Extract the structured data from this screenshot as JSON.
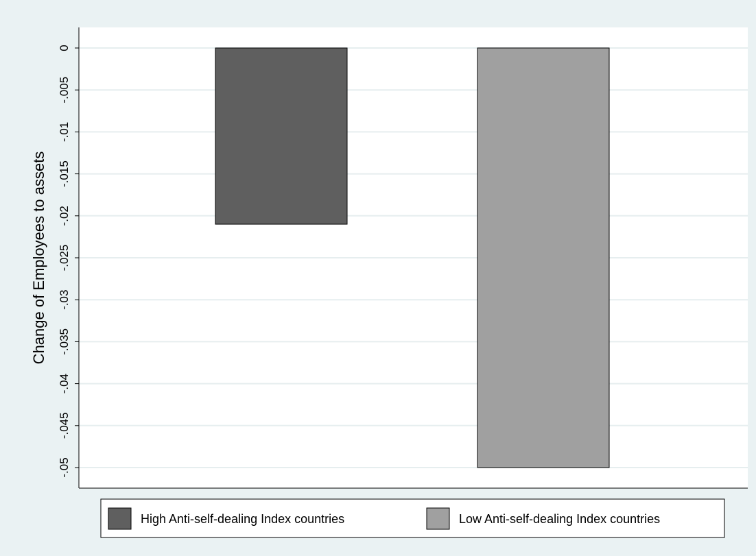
{
  "chart_data": {
    "type": "bar",
    "title": "",
    "xlabel": "",
    "ylabel": "Change of Employees to assets",
    "ylim": [
      -0.05,
      0
    ],
    "yticks": [
      0,
      -0.005,
      -0.01,
      -0.015,
      -0.02,
      -0.025,
      -0.03,
      -0.035,
      -0.04,
      -0.045,
      -0.05
    ],
    "ytick_labels": [
      "0",
      "-.005",
      "-.01",
      "-.015",
      "-.02",
      "-.025",
      "-.03",
      "-.035",
      "-.04",
      "-.045",
      "-.05"
    ],
    "grid": true,
    "legend_position": "bottom",
    "series": [
      {
        "name": "High Anti-self-dealing Index countries",
        "values": [
          -0.021
        ],
        "color": "#5f5f5f"
      },
      {
        "name": "Low Anti-self-dealing Index countries",
        "values": [
          -0.05
        ],
        "color": "#a0a0a0"
      }
    ]
  }
}
